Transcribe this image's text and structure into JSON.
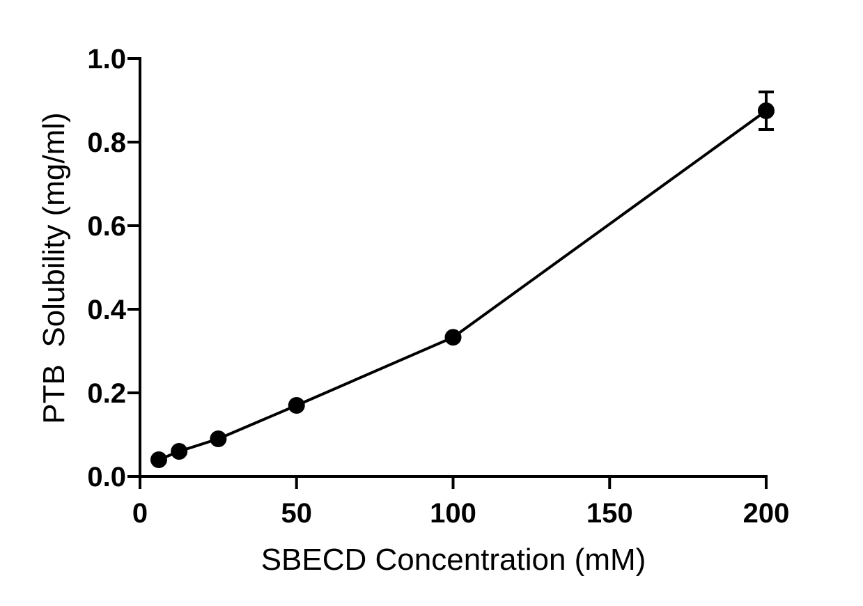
{
  "chart_data": {
    "type": "line",
    "title": "",
    "xlabel": "SBECD Concentration (mM)",
    "ylabel": "PTB  Solubility (mg/ml)",
    "xlim": [
      0,
      200
    ],
    "ylim": [
      0.0,
      1.0
    ],
    "x_ticks": [
      "0",
      "50",
      "100",
      "150",
      "200"
    ],
    "y_ticks": [
      "0.0",
      "0.2",
      "0.4",
      "0.6",
      "0.8",
      "1.0"
    ],
    "grid": false,
    "legend": "none",
    "series": [
      {
        "color": "#000000",
        "marker": "circle",
        "points": [
          {
            "x": 6,
            "y": 0.04,
            "err": 0
          },
          {
            "x": 12.5,
            "y": 0.06,
            "err": 0
          },
          {
            "x": 25,
            "y": 0.09,
            "err": 0
          },
          {
            "x": 50,
            "y": 0.17,
            "err": 0
          },
          {
            "x": 100,
            "y": 0.333,
            "err": 0
          },
          {
            "x": 200,
            "y": 0.875,
            "err": 0.045
          }
        ]
      }
    ]
  }
}
